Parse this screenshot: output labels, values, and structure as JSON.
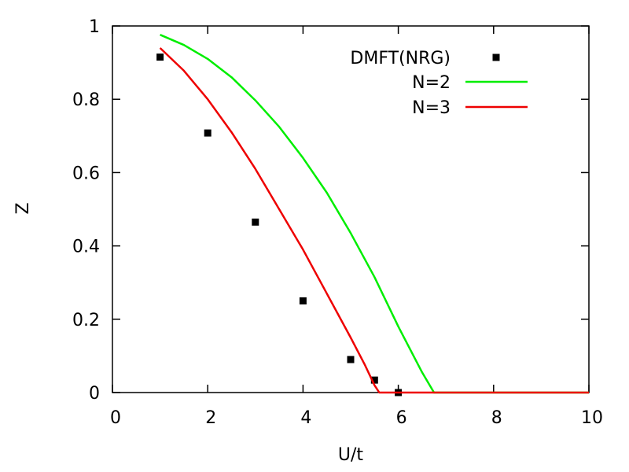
{
  "chart_data": {
    "type": "line",
    "xlabel": "U/t",
    "ylabel": "Z",
    "xlim": [
      0,
      10
    ],
    "ylim": [
      0,
      1
    ],
    "x_ticks": [
      0,
      2,
      4,
      6,
      8,
      10
    ],
    "y_ticks": [
      0,
      0.2,
      0.4,
      0.6,
      0.8,
      1
    ],
    "x_tick_labels": [
      "0",
      "2",
      "4",
      "6",
      "8",
      "10"
    ],
    "y_tick_labels": [
      "0",
      "0.2",
      "0.4",
      "0.6",
      "0.8",
      "1"
    ],
    "grid": false,
    "legend_position": "top-right",
    "series": [
      {
        "name": "DMFT(NRG)",
        "kind": "scatter",
        "color": "#000000",
        "x": [
          1,
          2,
          3,
          4,
          5,
          5.5,
          6
        ],
        "y": [
          0.915,
          0.708,
          0.465,
          0.25,
          0.09,
          0.034,
          0.0
        ]
      },
      {
        "name": "N=2",
        "kind": "line",
        "color": "#00ee00",
        "x": [
          1,
          1.5,
          2,
          2.5,
          3,
          3.5,
          4,
          4.5,
          5,
          5.5,
          6,
          6.5,
          6.75,
          7,
          8,
          9,
          10
        ],
        "y": [
          0.976,
          0.948,
          0.91,
          0.86,
          0.797,
          0.725,
          0.64,
          0.545,
          0.435,
          0.315,
          0.18,
          0.055,
          0.0,
          0.0,
          0.0,
          0.0,
          0.0
        ]
      },
      {
        "name": "N=3",
        "kind": "line",
        "color": "#ee0000",
        "x": [
          1,
          1.5,
          2,
          2.5,
          3,
          3.5,
          4,
          4.5,
          5,
          5.3,
          5.5,
          5.6,
          6,
          7,
          8,
          9,
          10
        ],
        "y": [
          0.94,
          0.878,
          0.8,
          0.71,
          0.61,
          0.5,
          0.39,
          0.27,
          0.15,
          0.075,
          0.02,
          0.0,
          0.0,
          0.0,
          0.0,
          0.0,
          0.0
        ]
      }
    ]
  }
}
